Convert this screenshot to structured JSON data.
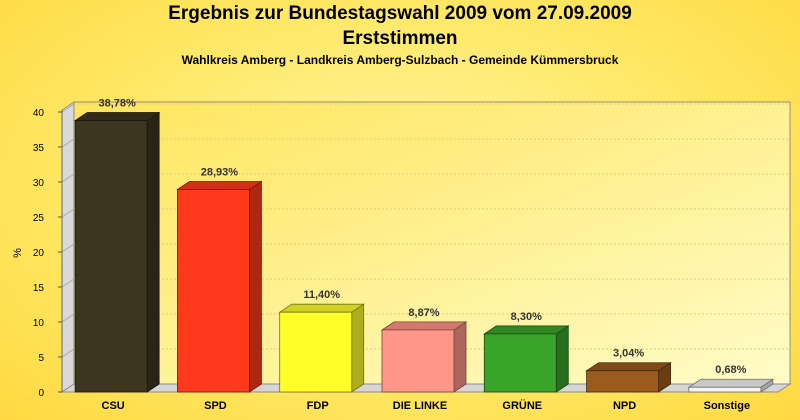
{
  "chart_data": {
    "type": "bar",
    "title": "Ergebnis zur Bundestagswahl 2009 vom 27.09.2009",
    "title_line2": "Erststimmen",
    "subtitle": "Wahlkreis Amberg - Landkreis Amberg-Sulzbach - Gemeinde Kümmersbruck",
    "ylabel": "%",
    "xlabel": "",
    "ylim": [
      0,
      40
    ],
    "yticks": [
      0,
      5,
      10,
      15,
      20,
      25,
      30,
      35,
      40
    ],
    "grid": true,
    "categories": [
      "CSU",
      "SPD",
      "FDP",
      "DIE LINKE",
      "GRÜNE",
      "NPD",
      "Sonstige"
    ],
    "values": [
      38.78,
      28.93,
      11.4,
      8.87,
      8.3,
      3.04,
      0.68
    ],
    "value_labels": [
      "38,78%",
      "28,93%",
      "11,40%",
      "8,87%",
      "8,30%",
      "3,04%",
      "0,68%"
    ],
    "colors": [
      "#3d3520",
      "#ff3a1c",
      "#ffff2a",
      "#ff9688",
      "#3aa329",
      "#9a5b1c",
      "#f4f4f4"
    ]
  }
}
